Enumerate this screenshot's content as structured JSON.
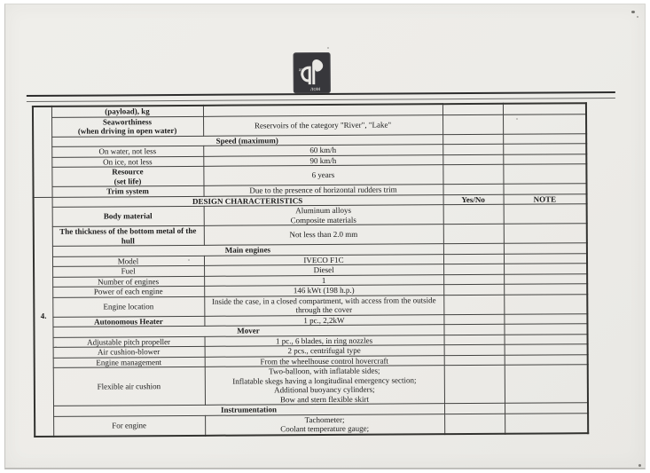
{
  "colors": {
    "paper": "#edece8",
    "table_line": "#424240",
    "text": "#1b1b1b",
    "logo_background": "#37373b"
  },
  "logo": {
    "name": "company-emblem",
    "text_top": "аг",
    "text_bottom": "лом"
  },
  "table": {
    "section_number": "4.",
    "headers": {
      "yes_no": "Yes/No",
      "note": "NOTE"
    },
    "rows": [
      {
        "type": "param",
        "bold": true,
        "name": "(payload), kg",
        "value": ""
      },
      {
        "type": "param",
        "bold": true,
        "name": "Seaworthiness\n(when driving in open water)",
        "value": "Reservoirs of the category \"River\", \"Lake\""
      },
      {
        "type": "subheader",
        "label": "Speed (maximum)"
      },
      {
        "type": "param",
        "bold": false,
        "name": "On water, not less",
        "value": "60 km/h"
      },
      {
        "type": "param",
        "bold": false,
        "name": "On ice, not less",
        "value": "90 km/h"
      },
      {
        "type": "param",
        "bold": true,
        "name": "Resource\n(set life)",
        "value": "6 years"
      },
      {
        "type": "param",
        "bold": true,
        "name": "Trim system",
        "value": "Due to the presence of horizontal rudders trim"
      },
      {
        "type": "header",
        "label": "DESIGN CHARACTERISTICS"
      },
      {
        "type": "param",
        "bold": true,
        "name": "Body material",
        "value": "Aluminum alloys\nComposite materials"
      },
      {
        "type": "param",
        "bold": true,
        "name": "The thickness of the bottom metal of the hull",
        "value": "Not less than 2.0 mm"
      },
      {
        "type": "subheader",
        "label": "Main engines"
      },
      {
        "type": "param",
        "bold": false,
        "name": "Model",
        "value": "IVECO F1C"
      },
      {
        "type": "param",
        "bold": false,
        "name": "Fuel",
        "value": "Diesel"
      },
      {
        "type": "param",
        "bold": false,
        "name": "Number of engines",
        "value": "1"
      },
      {
        "type": "param",
        "bold": false,
        "name": "Power of each engine",
        "value": "146 kWt (198 h.p.)"
      },
      {
        "type": "param",
        "bold": false,
        "name": "Engine location",
        "value": "Inside the case, in a closed compartment, with access from the outside through the cover"
      },
      {
        "type": "param",
        "bold": true,
        "name": "Autonomous Heater",
        "value": "1 pc., 2,2kW"
      },
      {
        "type": "subheader",
        "label": "Mover"
      },
      {
        "type": "param",
        "bold": false,
        "name": "Adjustable pitch propeller",
        "value": "1 pc., 6 blades, in ring nozzles"
      },
      {
        "type": "param",
        "bold": false,
        "name": "Air cushion-blower",
        "value": "2 pcs., centrifugal type"
      },
      {
        "type": "param",
        "bold": false,
        "name": "Engine management",
        "value": "From the wheelhouse control hovercraft"
      },
      {
        "type": "param",
        "bold": false,
        "name": "Flexible air cushion",
        "value": "Two-balloon, with inflatable sides;\nInflatable skegs having a longitudinal emergency section;\nAdditional buoyancy cylinders;\nBow and stern flexible skirt"
      },
      {
        "type": "subheader",
        "label": "Instrumentation"
      },
      {
        "type": "param",
        "bold": false,
        "name": "For engine",
        "value": "Tachometer;\nCoolant temperature gauge;"
      }
    ]
  }
}
